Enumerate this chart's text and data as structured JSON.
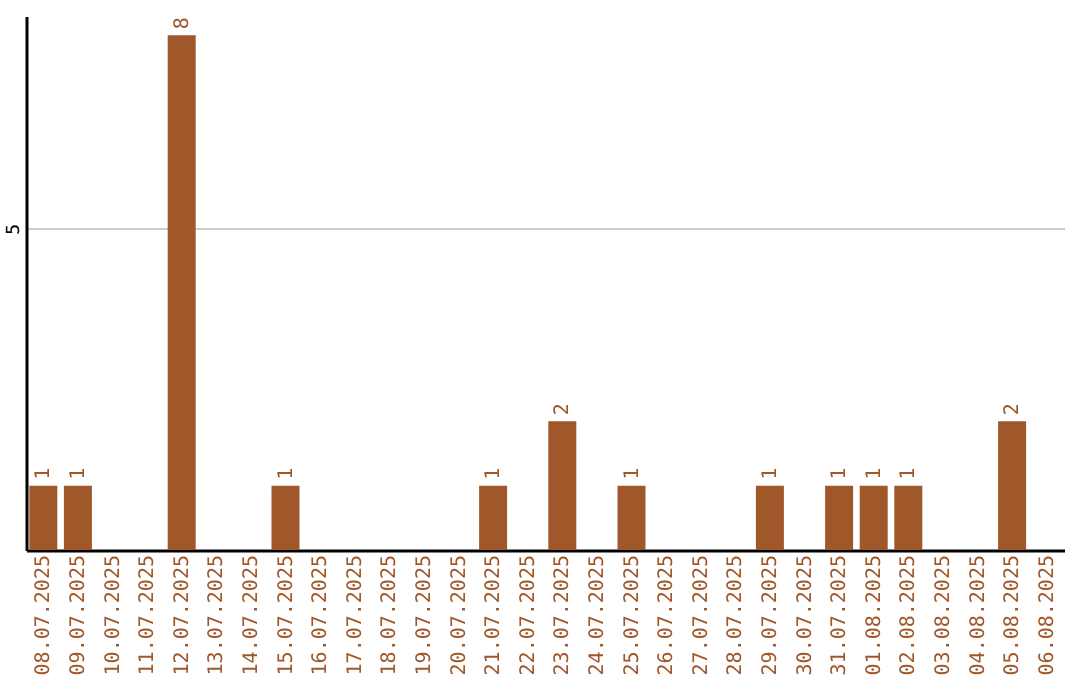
{
  "chart_data": {
    "type": "bar",
    "categories": [
      "08.07.2025",
      "09.07.2025",
      "10.07.2025",
      "11.07.2025",
      "12.07.2025",
      "13.07.2025",
      "14.07.2025",
      "15.07.2025",
      "16.07.2025",
      "17.07.2025",
      "18.07.2025",
      "19.07.2025",
      "20.07.2025",
      "21.07.2025",
      "22.07.2025",
      "23.07.2025",
      "24.07.2025",
      "25.07.2025",
      "26.07.2025",
      "27.07.2025",
      "28.07.2025",
      "29.07.2025",
      "30.07.2025",
      "31.07.2025",
      "01.08.2025",
      "02.08.2025",
      "03.08.2025",
      "04.08.2025",
      "05.08.2025",
      "06.08.2025"
    ],
    "values": [
      1,
      1,
      0,
      0,
      8,
      0,
      0,
      1,
      0,
      0,
      0,
      0,
      0,
      1,
      0,
      2,
      0,
      1,
      0,
      0,
      0,
      1,
      0,
      1,
      1,
      1,
      0,
      0,
      2,
      0
    ],
    "value_labels": [
      "1",
      "1",
      null,
      null,
      "8",
      null,
      null,
      "1",
      null,
      null,
      null,
      null,
      null,
      "1",
      null,
      "2",
      null,
      "1",
      null,
      null,
      null,
      "1",
      null,
      "1",
      "1",
      "1",
      null,
      null,
      "2",
      null
    ],
    "color": "#a0572a",
    "ylim": [
      0,
      8.3
    ],
    "yticks": [
      5
    ],
    "grid": "y"
  }
}
